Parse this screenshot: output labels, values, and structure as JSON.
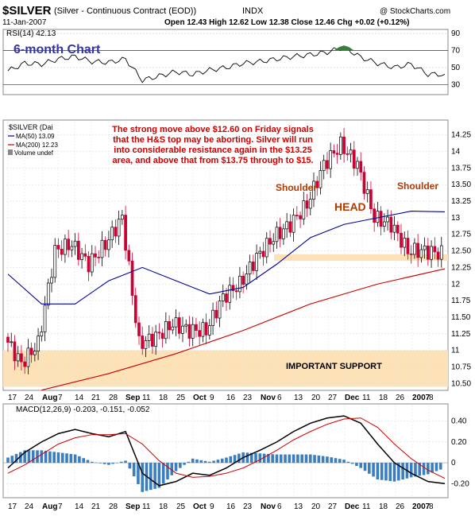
{
  "header": {
    "symbol": "$SILVER",
    "name": "(Silver - Continuous Contract (EOD))",
    "exchange": "INDX",
    "source": "@ StockCharts.com",
    "date": "11-Jan-2007",
    "quote": "Open 12.43  High 12.62  Low 12.38  Close 12.46  Chg +0.02 (+0.12%)"
  },
  "colors": {
    "up": "#000000",
    "down": "#cc0033",
    "ma50": "#000099",
    "ma200": "#cc0000",
    "rsi_line": "#000000",
    "rsi_fill": "#3c7c3c",
    "macd": "#000000",
    "signal": "#cc0000",
    "histogram": "#3a7ec0",
    "support_band": "#fde2b8",
    "annotation": "#cc0000",
    "head_text": "#b03a00",
    "chart_title": "#3333aa"
  },
  "annotations": {
    "chart_title": "6-month Chart",
    "note": [
      "The strong move above $12.60 on Friday signals",
      "that the H&S top may be aborting. Silver will run",
      "into considerable resistance again in the $13.25",
      "area, and above that from $13.75 through to $15."
    ],
    "shoulder_left": "Shoulder",
    "shoulder_right": "Shoulder",
    "head": "HEAD",
    "support": "IMPORTANT SUPPORT"
  },
  "chart_data": [
    {
      "type": "line",
      "panel": "rsi",
      "label": "RSI(14) 42.13",
      "ylim": [
        20,
        92
      ],
      "ticks": [
        90,
        70,
        50,
        30
      ],
      "overbought": 70,
      "oversold": 30,
      "x": [
        "Jul 17",
        "Jul 24",
        "Jul 31",
        "Aug 7",
        "Aug 14",
        "Aug 21",
        "Aug 28",
        "Sep 4",
        "Sep 11",
        "Sep 18",
        "Sep 25",
        "Oct 2",
        "Oct 9",
        "Oct 16",
        "Oct 23",
        "Oct 30",
        "Nov 6",
        "Nov 13",
        "Nov 20",
        "Nov 27",
        "Dec 4",
        "Dec 11",
        "Dec 18",
        "Dec 26",
        "Jan 2",
        "Jan 8",
        "Jan 11"
      ],
      "values": [
        46,
        55,
        54,
        60,
        63,
        57,
        56,
        60,
        35,
        40,
        45,
        42,
        47,
        50,
        55,
        57,
        60,
        63,
        65,
        68,
        74,
        62,
        55,
        50,
        54,
        42,
        42
      ]
    },
    {
      "type": "candlestick",
      "panel": "price",
      "legend": [
        "$SILVER (Dai",
        "MA(50) 13.09",
        "MA(200) 12.23",
        "Volume undef"
      ],
      "ylim": [
        10.42,
        14.45
      ],
      "ticks": [
        14.25,
        14.0,
        13.75,
        13.5,
        13.25,
        13.0,
        12.75,
        12.5,
        12.25,
        12.0,
        11.75,
        11.5,
        11.25,
        11.0,
        10.75,
        10.5
      ],
      "x_labels": [
        "17",
        "24",
        "Aug",
        "7",
        "14",
        "21",
        "28",
        "Sep",
        "11",
        "18",
        "25",
        "Oct",
        "9",
        "16",
        "23",
        "Nov",
        "6",
        "13",
        "20",
        "27",
        "Dec",
        "11",
        "18",
        "26",
        "2007",
        "8"
      ],
      "close_by_week": [
        {
          "week": "Jul 17",
          "close": 11.2
        },
        {
          "week": "Jul 24",
          "close": 10.8
        },
        {
          "week": "Jul 31",
          "close": 11.1
        },
        {
          "week": "Aug 7",
          "close": 12.5
        },
        {
          "week": "Aug 14",
          "close": 12.6
        },
        {
          "week": "Aug 21",
          "close": 12.3
        },
        {
          "week": "Aug 28",
          "close": 12.6
        },
        {
          "week": "Sep 4",
          "close": 13.0
        },
        {
          "week": "Sep 11",
          "close": 11.1
        },
        {
          "week": "Sep 18",
          "close": 11.2
        },
        {
          "week": "Sep 25",
          "close": 11.4
        },
        {
          "week": "Oct 2",
          "close": 11.3
        },
        {
          "week": "Oct 9",
          "close": 11.3
        },
        {
          "week": "Oct 16",
          "close": 11.8
        },
        {
          "week": "Oct 23",
          "close": 12.0
        },
        {
          "week": "Oct 30",
          "close": 12.4
        },
        {
          "week": "Nov 6",
          "close": 12.7
        },
        {
          "week": "Nov 13",
          "close": 12.9
        },
        {
          "week": "Nov 20",
          "close": 13.2
        },
        {
          "week": "Nov 27",
          "close": 13.8
        },
        {
          "week": "Dec 4",
          "close": 14.1
        },
        {
          "week": "Dec 11",
          "close": 13.8
        },
        {
          "week": "Dec 18",
          "close": 13.0
        },
        {
          "week": "Dec 26",
          "close": 12.9
        },
        {
          "week": "Jan 2",
          "close": 12.5
        },
        {
          "week": "Jan 8",
          "close": 12.5
        },
        {
          "week": "Jan 11",
          "close": 12.46
        }
      ],
      "ma50": [
        {
          "week": "Jul 17",
          "value": 12.15
        },
        {
          "week": "Jul 31",
          "value": 11.7
        },
        {
          "week": "Aug 14",
          "value": 11.7
        },
        {
          "week": "Aug 28",
          "value": 12.05
        },
        {
          "week": "Sep 11",
          "value": 12.25
        },
        {
          "week": "Sep 25",
          "value": 12.05
        },
        {
          "week": "Oct 9",
          "value": 11.85
        },
        {
          "week": "Oct 23",
          "value": 11.95
        },
        {
          "week": "Nov 6",
          "value": 12.3
        },
        {
          "week": "Nov 20",
          "value": 12.7
        },
        {
          "week": "Dec 4",
          "value": 12.9
        },
        {
          "week": "Dec 18",
          "value": 13.0
        },
        {
          "week": "Jan 2",
          "value": 13.1
        },
        {
          "week": "Jan 11",
          "value": 13.09
        }
      ],
      "ma200": [
        {
          "week": "Jul 31",
          "value": 10.4
        },
        {
          "week": "Aug 28",
          "value": 10.65
        },
        {
          "week": "Sep 25",
          "value": 10.95
        },
        {
          "week": "Oct 23",
          "value": 11.3
        },
        {
          "week": "Nov 20",
          "value": 11.7
        },
        {
          "week": "Dec 18",
          "value": 12.0
        },
        {
          "week": "Jan 11",
          "value": 12.23
        }
      ],
      "support_zone": [
        10.45,
        11.0
      ],
      "neckline_zone": [
        12.35,
        12.45
      ]
    },
    {
      "type": "line",
      "panel": "macd",
      "label": "MACD(12,26,9) -0.203, -0.151, -0.052",
      "ylim": [
        -0.32,
        0.55
      ],
      "ticks": [
        0.4,
        0.2,
        0.0,
        -0.2
      ],
      "series": [
        {
          "name": "MACD",
          "values": [
            -0.05,
            0.1,
            0.2,
            0.28,
            0.32,
            0.28,
            0.25,
            0.3,
            -0.1,
            -0.22,
            -0.18,
            -0.1,
            -0.12,
            -0.05,
            0.05,
            0.12,
            0.2,
            0.3,
            0.38,
            0.43,
            0.45,
            0.38,
            0.18,
            0.0,
            -0.1,
            -0.18,
            -0.2
          ]
        },
        {
          "name": "Signal",
          "values": [
            -0.1,
            -0.02,
            0.08,
            0.18,
            0.24,
            0.27,
            0.27,
            0.28,
            0.18,
            0.02,
            -0.1,
            -0.14,
            -0.13,
            -0.1,
            -0.05,
            0.03,
            0.12,
            0.22,
            0.3,
            0.37,
            0.42,
            0.43,
            0.34,
            0.18,
            0.04,
            -0.07,
            -0.15
          ]
        }
      ],
      "histogram": [
        0.05,
        0.12,
        0.12,
        0.1,
        0.08,
        0.01,
        -0.02,
        0.02,
        -0.28,
        -0.24,
        -0.08,
        0.04,
        0.01,
        0.05,
        0.1,
        0.09,
        0.08,
        0.08,
        0.08,
        0.06,
        0.03,
        -0.05,
        -0.16,
        -0.18,
        -0.14,
        -0.11,
        -0.05
      ]
    }
  ]
}
